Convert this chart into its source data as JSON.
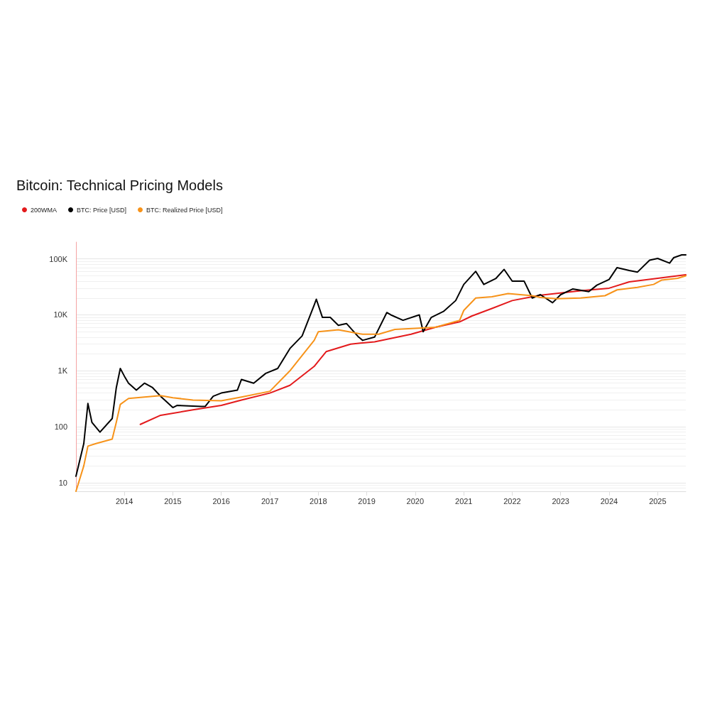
{
  "chart_data": {
    "type": "line",
    "title": "Bitcoin: Technical Pricing Models",
    "log": "y",
    "grid": "y",
    "legend": "top left",
    "marker": "none",
    "line_style": "solid",
    "xlim": [
      "2013-01",
      "2025-08"
    ],
    "xticks": [
      "2014",
      "2015",
      "2016",
      "2017",
      "2018",
      "2019",
      "2020",
      "2021",
      "2022",
      "2023",
      "2024",
      "2025"
    ],
    "ylim": [
      7,
      200000
    ],
    "yticks": [
      {
        "value": 10,
        "label": "10"
      },
      {
        "value": 100,
        "label": "100"
      },
      {
        "value": 1000,
        "label": "1K"
      },
      {
        "value": 10000,
        "label": "10K"
      },
      {
        "value": 100000,
        "label": "100K"
      }
    ],
    "series": [
      {
        "name": "200WMA",
        "color": "#e31a1c",
        "x": [
          "2014-05",
          "2014-10",
          "2015-06",
          "2016-01",
          "2016-06",
          "2017-01",
          "2017-06",
          "2017-12",
          "2018-03",
          "2018-09",
          "2019-03",
          "2019-12",
          "2020-06",
          "2020-12",
          "2021-03",
          "2021-08",
          "2022-01",
          "2022-08",
          "2023-06",
          "2024-01",
          "2024-06",
          "2025-01",
          "2025-08"
        ],
        "values": [
          110,
          160,
          200,
          240,
          300,
          400,
          550,
          1200,
          2200,
          3000,
          3300,
          4500,
          6000,
          7500,
          9500,
          13000,
          18000,
          22500,
          27000,
          30000,
          39000,
          45000,
          52000
        ]
      },
      {
        "name": "BTC: Price [USD]",
        "color": "#000000",
        "x": [
          "2013-01",
          "2013-03",
          "2013-04",
          "2013-05",
          "2013-07",
          "2013-10",
          "2013-11",
          "2013-12",
          "2014-01",
          "2014-02",
          "2014-04",
          "2014-06",
          "2014-08",
          "2014-10",
          "2015-01",
          "2015-02",
          "2015-05",
          "2015-08",
          "2015-09",
          "2015-11",
          "2016-01",
          "2016-05",
          "2016-06",
          "2016-09",
          "2016-12",
          "2017-03",
          "2017-06",
          "2017-09",
          "2017-12",
          "2017-12-17",
          "2018-02",
          "2018-04",
          "2018-06",
          "2018-08",
          "2018-11",
          "2018-12",
          "2019-03",
          "2019-06",
          "2019-07",
          "2019-10",
          "2020-02",
          "2020-03",
          "2020-05",
          "2020-08",
          "2020-11",
          "2021-01",
          "2021-04",
          "2021-06",
          "2021-09",
          "2021-11",
          "2022-01",
          "2022-04",
          "2022-06",
          "2022-08",
          "2022-11",
          "2023-01",
          "2023-04",
          "2023-08",
          "2023-10",
          "2024-01",
          "2024-03",
          "2024-06",
          "2024-08",
          "2024-11",
          "2025-01",
          "2025-04",
          "2025-05",
          "2025-07",
          "2025-08"
        ],
        "values": [
          13,
          50,
          260,
          120,
          80,
          140,
          500,
          1100,
          800,
          600,
          450,
          600,
          500,
          350,
          220,
          240,
          235,
          230,
          230,
          350,
          400,
          450,
          700,
          600,
          900,
          1100,
          2500,
          4200,
          15000,
          19000,
          9000,
          9000,
          6500,
          7000,
          4000,
          3500,
          4000,
          11000,
          10000,
          8000,
          10000,
          5000,
          9000,
          11500,
          18000,
          35000,
          60000,
          35000,
          45000,
          65000,
          40000,
          40000,
          20000,
          23000,
          16500,
          23000,
          29000,
          26000,
          34000,
          43000,
          70000,
          62000,
          58000,
          95000,
          102000,
          84000,
          105000,
          118000,
          118000
        ]
      },
      {
        "name": "BTC: Realized Price [USD]",
        "color": "#f7931a",
        "x": [
          "2013-01",
          "2013-03",
          "2013-04",
          "2013-06",
          "2013-10",
          "2013-11",
          "2013-12",
          "2014-02",
          "2014-06",
          "2014-10",
          "2015-01",
          "2015-06",
          "2016-01",
          "2016-06",
          "2017-01",
          "2017-06",
          "2017-12",
          "2018-01",
          "2018-06",
          "2018-12",
          "2019-04",
          "2019-08",
          "2020-06",
          "2020-12",
          "2021-01",
          "2021-04",
          "2021-08",
          "2021-12",
          "2022-06",
          "2022-08",
          "2022-12",
          "2023-06",
          "2023-12",
          "2024-03",
          "2024-08",
          "2024-12",
          "2025-02",
          "2025-06",
          "2025-08"
        ],
        "values": [
          7,
          20,
          45,
          50,
          60,
          120,
          250,
          320,
          340,
          360,
          330,
          300,
          290,
          340,
          430,
          1000,
          3500,
          5000,
          5400,
          4500,
          4500,
          5500,
          6000,
          8000,
          12000,
          20000,
          21000,
          24000,
          22000,
          20500,
          19500,
          20000,
          22000,
          28000,
          31000,
          35000,
          42000,
          45000,
          50000
        ]
      }
    ]
  }
}
